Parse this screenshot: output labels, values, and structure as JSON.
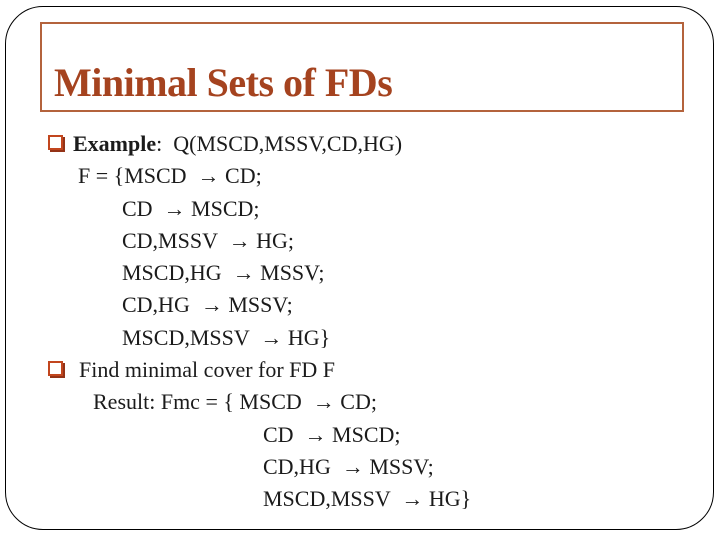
{
  "title": {
    "text": "Minimal Sets of FDs"
  },
  "content": {
    "example": {
      "bullet_icon": "shadowed-square-icon",
      "label": "Example",
      "after_label": ":  Q(MSCD,MSSV,CD,HG)",
      "f_intro": "F = {MSCD  → CD;",
      "fd_lines": [
        "CD  → MSCD;",
        "CD,MSSV  → HG;",
        "MSCD,HG  → MSSV;",
        "CD,HG  → MSSV;",
        "MSCD,MSSV  → HG}"
      ]
    },
    "task": {
      "bullet_icon": "shadowed-square-icon",
      "text": "Find minimal cover for FD F",
      "result_intro": "Result: Fmc = { MSCD  → CD;",
      "result_fd_lines": [
        "CD  → MSCD;",
        "CD,HG  → MSSV;",
        "MSCD,MSSV  → HG}"
      ]
    }
  },
  "colors": {
    "background": "#FFFFFF",
    "frame_border": "#000000",
    "title_text": "#A5431F",
    "title_box_border": "#B4633C",
    "bullet": "#C2461E",
    "bullet_shadow": "#943317",
    "body_text": "#1B1B1B"
  }
}
